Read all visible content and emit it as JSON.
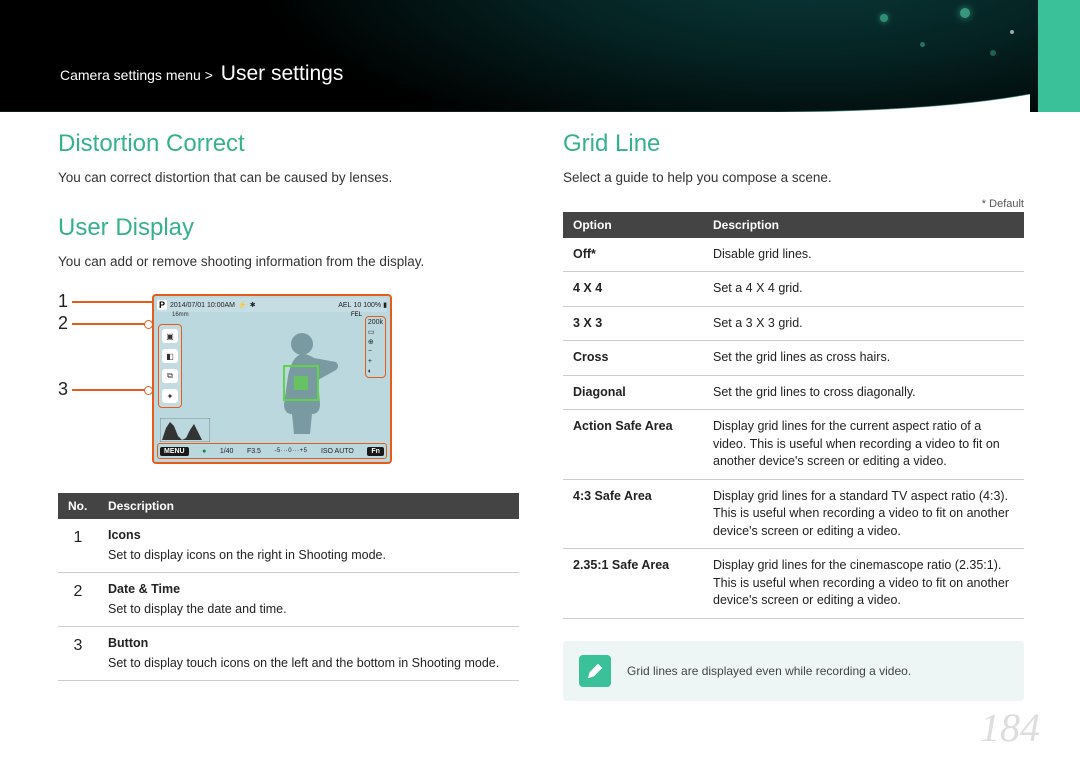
{
  "breadcrumb": {
    "prefix": "Camera settings menu >",
    "current": "User settings"
  },
  "distortion": {
    "heading": "Distortion Correct",
    "body": "You can correct distortion that can be caused by lenses."
  },
  "userDisplay": {
    "heading": "User Display",
    "body": "You can add or remove shooting information from the display.",
    "callouts": [
      "1",
      "2",
      "3"
    ],
    "lcd": {
      "mode": "P",
      "datetime": "2014/07/01 10:00AM",
      "lens": "16mm",
      "ael": "AEL",
      "fel": "FEL",
      "shots": "10",
      "battery": "100%",
      "menu": "MENU",
      "fn": "Fn",
      "shutter": "1/40",
      "aperture": "F3.5",
      "ev": "EV: 0.0",
      "evscale": "-5···0···+5",
      "iso": "ISO AUTO"
    },
    "table": {
      "headers": {
        "no": "No.",
        "desc": "Description"
      },
      "rows": [
        {
          "no": "1",
          "title": "Icons",
          "desc": "Set to display icons on the right in Shooting mode."
        },
        {
          "no": "2",
          "title": "Date & Time",
          "desc": "Set to display the date and time."
        },
        {
          "no": "3",
          "title": "Button",
          "desc": "Set to display touch icons on the left and the bottom in Shooting mode."
        }
      ]
    }
  },
  "gridLine": {
    "heading": "Grid Line",
    "body": "Select a guide to help you compose a scene.",
    "defaultNote": "* Default",
    "table": {
      "headers": {
        "option": "Option",
        "desc": "Description"
      },
      "rows": [
        {
          "option": "Off*",
          "desc": "Disable grid lines."
        },
        {
          "option": "4 X 4",
          "desc": "Set a 4 X 4 grid."
        },
        {
          "option": "3 X 3",
          "desc": "Set a 3 X 3 grid."
        },
        {
          "option": "Cross",
          "desc": "Set the grid lines as cross hairs."
        },
        {
          "option": "Diagonal",
          "desc": "Set the grid lines to cross diagonally."
        },
        {
          "option": "Action Safe Area",
          "desc": "Display grid lines for the current aspect ratio of a video. This is useful when recording a video to fit on another device's screen or editing a video."
        },
        {
          "option": "4:3 Safe Area",
          "desc": "Display grid lines for a standard TV aspect ratio (4:3). This is useful when recording a video to fit on another device's screen or editing a video."
        },
        {
          "option": "2.35:1 Safe Area",
          "desc": "Display grid lines for the cinemascope ratio (2.35:1). This is useful when recording a video to fit on another device's screen or editing a video."
        }
      ]
    },
    "note": "Grid lines are displayed even while recording a video."
  },
  "pageNumber": "184",
  "colors": {
    "accent": "#34b28c",
    "tab": "#3bc199",
    "callout": "#e55b1a",
    "tableHeader": "#444444",
    "lcdBg": "#bcd8df"
  }
}
